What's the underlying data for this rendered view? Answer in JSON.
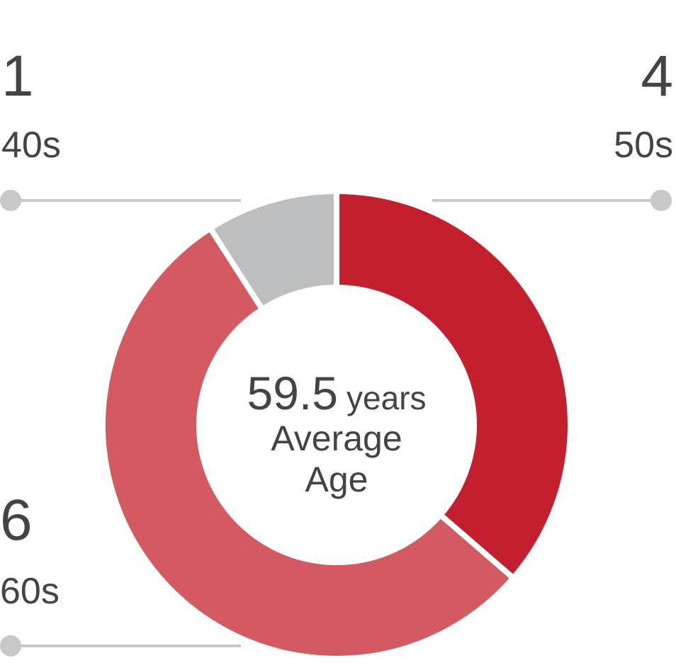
{
  "chart_data": {
    "type": "donut",
    "categories": [
      "50s",
      "60s",
      "40s"
    ],
    "values": [
      4,
      6,
      1
    ],
    "colors": [
      "#c41f2e",
      "#d45a62",
      "#bdbec0"
    ],
    "center_value": "59.5",
    "center_unit": "years",
    "center_label": "Average Age"
  }
}
